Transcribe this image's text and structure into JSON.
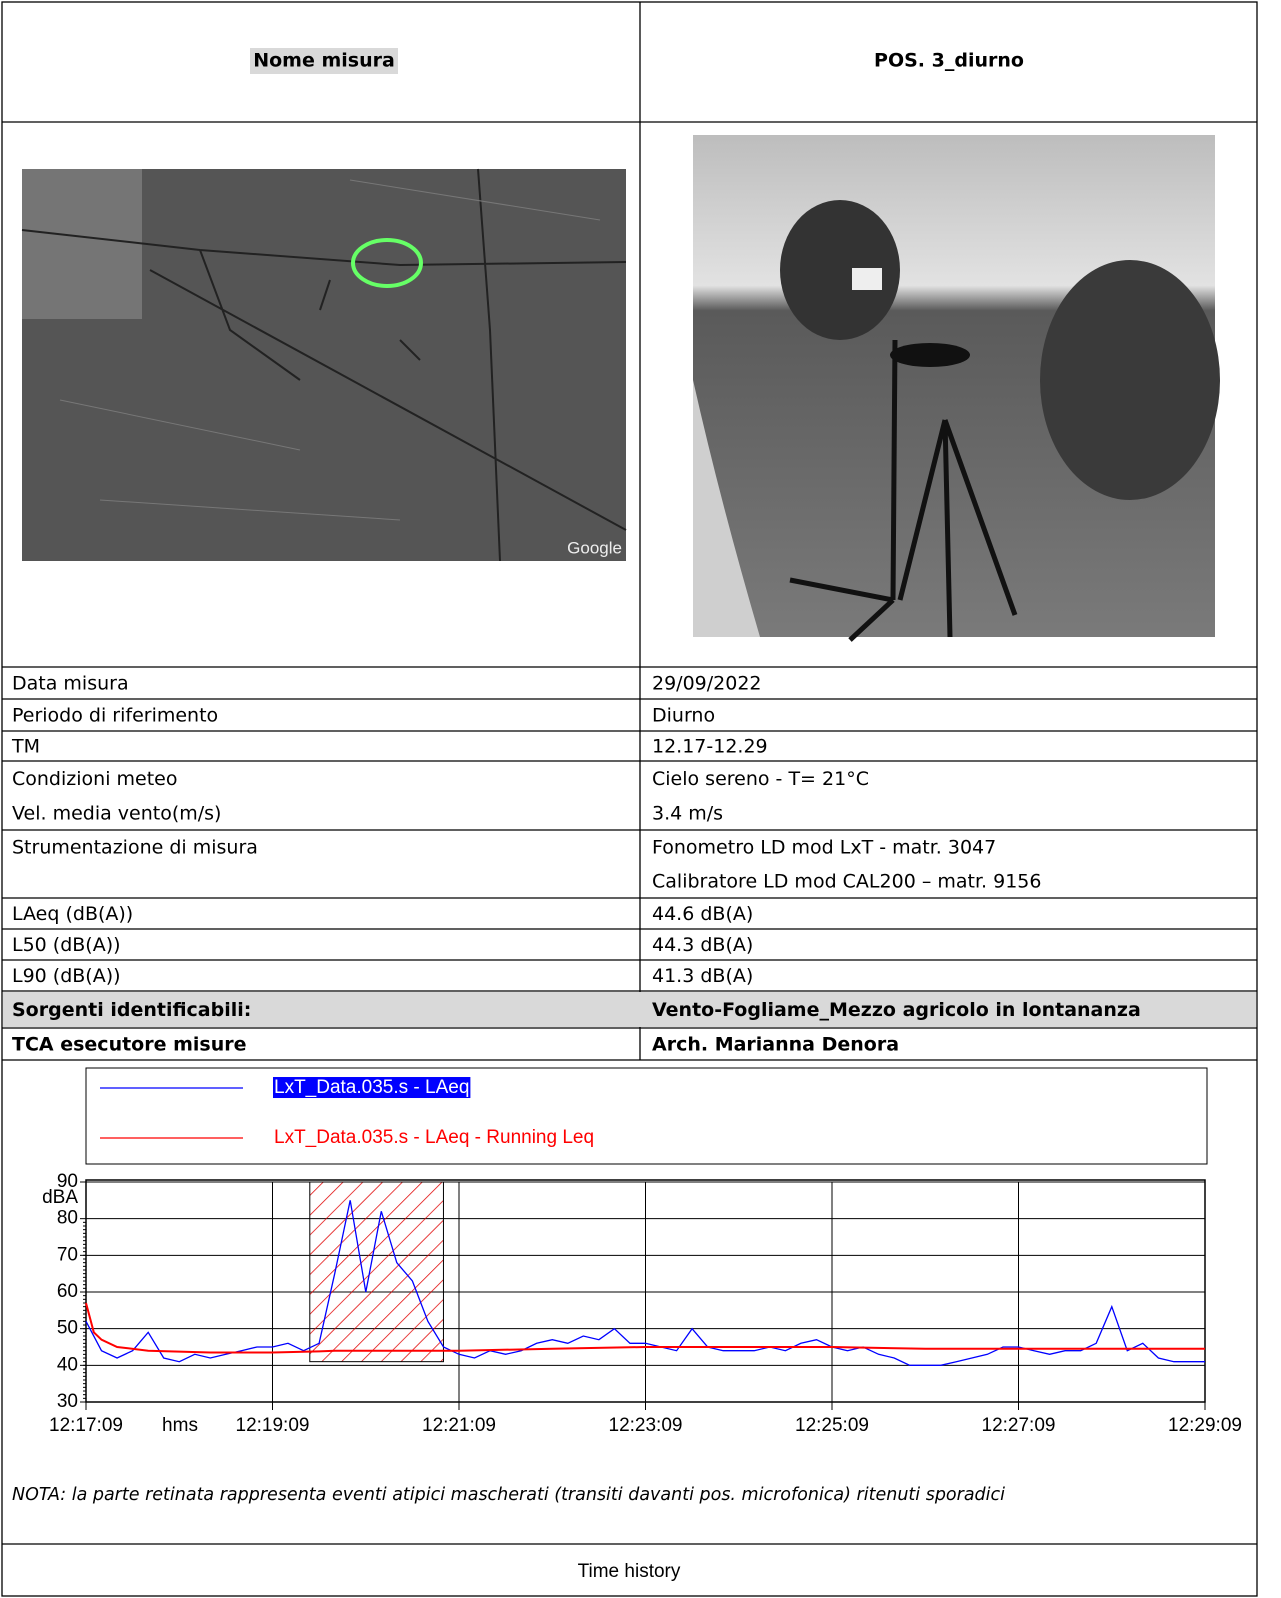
{
  "header": {
    "label": "Nome misura",
    "value": "POS. 3_diurno"
  },
  "images": {
    "map_watermark": "Google"
  },
  "table": {
    "rows": [
      {
        "cells": [
          [
            "Data misura"
          ],
          [
            "29/09/2022"
          ]
        ]
      },
      {
        "cells": [
          [
            "Periodo di riferimento"
          ],
          [
            "Diurno"
          ]
        ]
      },
      {
        "cells": [
          [
            "TM"
          ],
          [
            "12.17-12.29"
          ]
        ]
      },
      {
        "cells": [
          [
            "Condizioni meteo",
            "Vel. media vento(m/s)"
          ],
          [
            "Cielo sereno - T= 21°C",
            "3.4 m/s"
          ]
        ]
      },
      {
        "cells": [
          [
            "Strumentazione di misura"
          ],
          [
            "Fonometro LD mod LxT -  matr. 3047",
            "Calibratore LD mod CAL200 – matr. 9156"
          ]
        ]
      },
      {
        "cells": [
          [
            "LAeq (dB(A))"
          ],
          [
            "44.6 dB(A)"
          ]
        ]
      },
      {
        "cells": [
          [
            "L50 (dB(A))"
          ],
          [
            "44.3 dB(A)"
          ]
        ]
      },
      {
        "cells": [
          [
            "L90 (dB(A))"
          ],
          [
            "41.3 dB(A)"
          ]
        ]
      },
      {
        "cells": [
          [
            "Sorgenti identificabili:"
          ],
          [
            "Vento-Fogliame_Mezzo agricolo in lontananza"
          ]
        ],
        "bold": true,
        "shaded": true
      },
      {
        "cells": [
          [
            "TCA esecutore misure"
          ],
          [
            "Arch. Marianna Denora"
          ]
        ],
        "bold": true
      }
    ]
  },
  "chart_data": {
    "type": "line",
    "x_label": "hms",
    "y_label": "dBA",
    "xlim": [
      0,
      720
    ],
    "xticks": [
      {
        "value": 0,
        "label": "12:17:09"
      },
      {
        "value": 120,
        "label": "12:19:09"
      },
      {
        "value": 240,
        "label": "12:21:09"
      },
      {
        "value": 360,
        "label": "12:23:09"
      },
      {
        "value": 480,
        "label": "12:25:09"
      },
      {
        "value": 600,
        "label": "12:27:09"
      },
      {
        "value": 720,
        "label": "12:29:09"
      }
    ],
    "ylim": [
      30,
      90
    ],
    "yticks": [
      30,
      40,
      50,
      60,
      70,
      80,
      90
    ],
    "grid": true,
    "masked_region": {
      "xlim": [
        144,
        230
      ],
      "ylim": [
        41,
        90
      ],
      "color": "#e00000"
    },
    "series": [
      {
        "name": "LxT_Data.035.s - LAeq",
        "color": "#0000ff",
        "x": [
          0,
          10,
          20,
          30,
          40,
          50,
          60,
          70,
          80,
          90,
          100,
          110,
          120,
          130,
          140,
          150,
          160,
          170,
          180,
          190,
          200,
          210,
          220,
          230,
          240,
          250,
          260,
          270,
          280,
          290,
          300,
          310,
          320,
          330,
          340,
          350,
          360,
          370,
          380,
          390,
          400,
          410,
          420,
          430,
          440,
          450,
          460,
          470,
          480,
          490,
          500,
          510,
          520,
          530,
          540,
          550,
          560,
          570,
          580,
          590,
          600,
          610,
          620,
          630,
          640,
          650,
          660,
          670,
          680,
          690,
          700,
          710,
          720
        ],
        "values": [
          52,
          44,
          42,
          44,
          49,
          42,
          41,
          43,
          42,
          43,
          44,
          45,
          45,
          46,
          44,
          46,
          65,
          85,
          60,
          82,
          68,
          63,
          52,
          45,
          43,
          42,
          44,
          43,
          44,
          46,
          47,
          46,
          48,
          47,
          50,
          46,
          46,
          45,
          44,
          50,
          45,
          44,
          44,
          44,
          45,
          44,
          46,
          47,
          45,
          44,
          45,
          43,
          42,
          40,
          40,
          40,
          41,
          42,
          43,
          45,
          45,
          44,
          43,
          44,
          44,
          46,
          56,
          44,
          46,
          42,
          41,
          41,
          41
        ]
      },
      {
        "name": "LxT_Data.035.s - LAeq - Running Leq",
        "color": "#ff0000",
        "x": [
          0,
          5,
          10,
          20,
          40,
          80,
          120,
          150,
          160,
          240,
          300,
          360,
          420,
          480,
          540,
          600,
          660,
          720
        ],
        "values": [
          57,
          49,
          47,
          45,
          44,
          43.5,
          43.5,
          43.8,
          44,
          44,
          44.5,
          45,
          45,
          45,
          44.5,
          44.5,
          44.5,
          44.5
        ]
      }
    ]
  },
  "note": "NOTA: la parte retinata rappresenta eventi atipici mascherati (transiti davanti pos. microfonica) ritenuti sporadici",
  "caption": "Time history"
}
